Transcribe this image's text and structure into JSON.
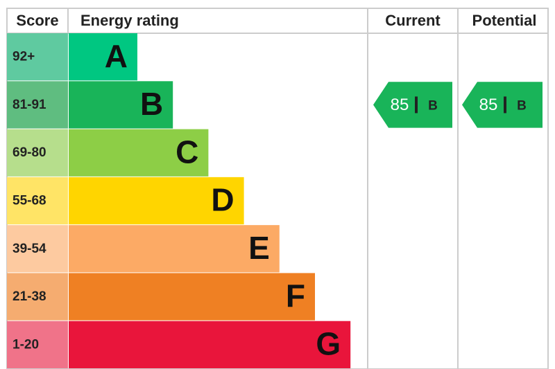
{
  "header": {
    "score": "Score",
    "rating": "Energy rating",
    "current": "Current",
    "potential": "Potential"
  },
  "bands": [
    {
      "score": "92+",
      "letter": "A",
      "color": "#00c781",
      "score_color": "#5fcaa0"
    },
    {
      "score": "81-91",
      "letter": "B",
      "color": "#19b459",
      "score_color": "#5fbd80"
    },
    {
      "score": "69-80",
      "letter": "C",
      "color": "#8dce46",
      "score_color": "#b6de8c"
    },
    {
      "score": "55-68",
      "letter": "D",
      "color": "#ffd500",
      "score_color": "#ffe466"
    },
    {
      "score": "39-54",
      "letter": "E",
      "color": "#fcaa65",
      "score_color": "#fdcaa0"
    },
    {
      "score": "21-38",
      "letter": "F",
      "color": "#ef8023",
      "score_color": "#f5ac70"
    },
    {
      "score": "1-20",
      "letter": "G",
      "color": "#e9153b",
      "score_color": "#f07389"
    }
  ],
  "current": {
    "value": 85,
    "letter": "B"
  },
  "potential": {
    "value": 85,
    "letter": "B"
  }
}
